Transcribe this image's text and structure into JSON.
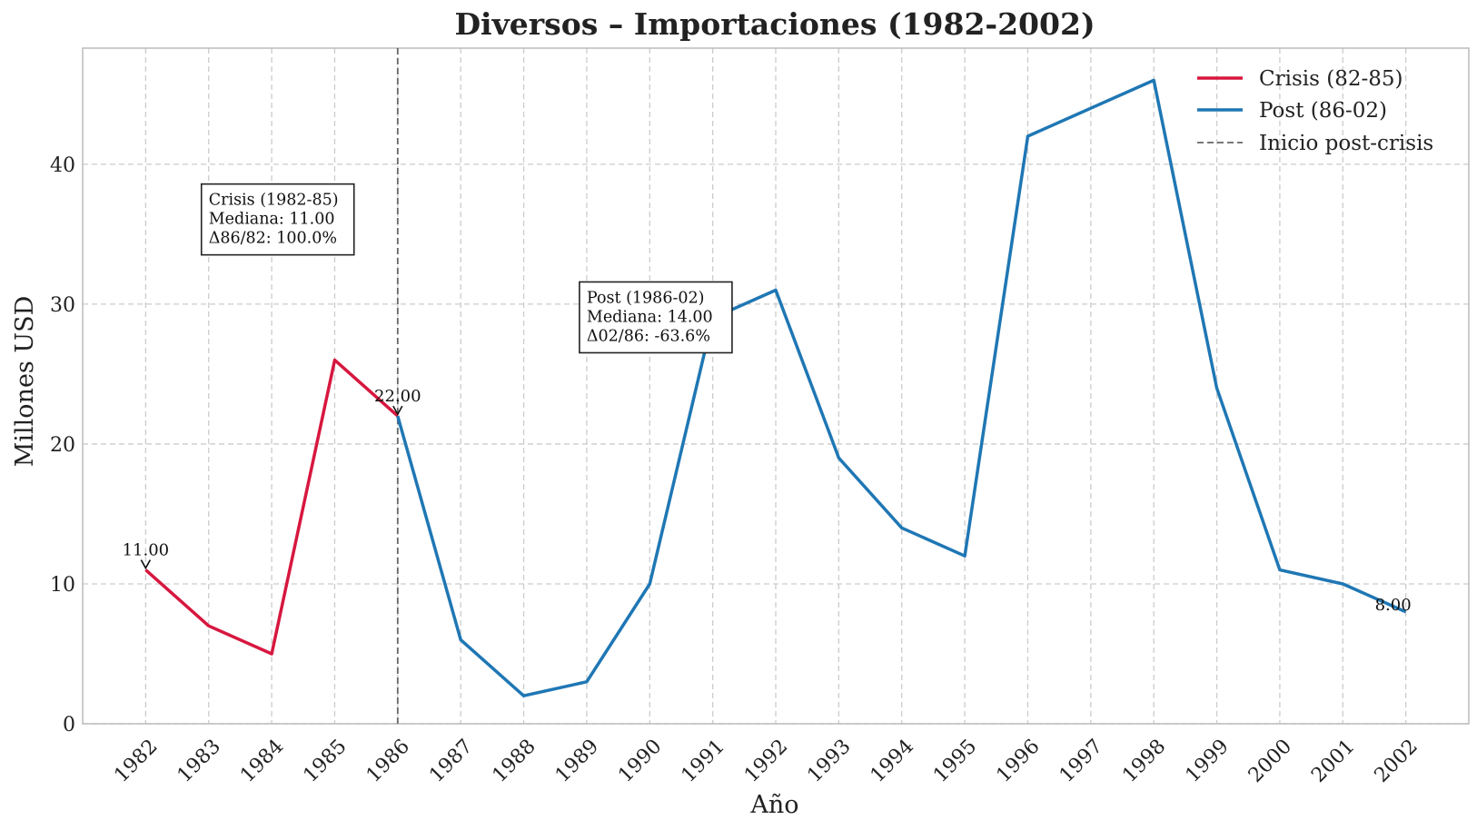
{
  "chart_data": {
    "type": "line",
    "title": "Diversos – Importaciones (1982-2002)",
    "xlabel": "Año",
    "ylabel": "Millones USD",
    "x": [
      1982,
      1983,
      1984,
      1985,
      1986,
      1987,
      1988,
      1989,
      1990,
      1991,
      1992,
      1993,
      1994,
      1995,
      1996,
      1997,
      1998,
      1999,
      2000,
      2001,
      2002
    ],
    "xlim": [
      1981,
      2003
    ],
    "ylim": [
      0,
      48.3
    ],
    "yticks": [
      0,
      10,
      20,
      30,
      40
    ],
    "grid": true,
    "legend_position": "top-right",
    "series": [
      {
        "name": "Crisis (82-85)",
        "color": "#d7173f",
        "x": [
          1982,
          1983,
          1984,
          1985,
          1986
        ],
        "values": [
          11,
          7,
          5,
          26,
          22
        ]
      },
      {
        "name": "Post (86-02)",
        "color": "#1f77b4",
        "x": [
          1986,
          1987,
          1988,
          1989,
          1990,
          1991,
          1992,
          1993,
          1994,
          1995,
          1996,
          1997,
          1998,
          1999,
          2000,
          2001,
          2002
        ],
        "values": [
          22,
          6,
          2,
          3,
          10,
          29,
          31,
          19,
          14,
          12,
          42,
          44,
          46,
          24,
          11,
          10,
          8
        ]
      }
    ],
    "vline": {
      "x": 1986,
      "label": "Inicio post-crisis",
      "color": "#666666"
    },
    "point_labels": [
      {
        "x": 1982,
        "y": 11,
        "text": "11.00",
        "arrow": true
      },
      {
        "x": 1986,
        "y": 22,
        "text": "22.00",
        "arrow": true
      },
      {
        "x": 2002,
        "y": 8,
        "text": "8.00",
        "arrow": false
      }
    ],
    "boxes": [
      {
        "lines": [
          "Crisis (1982-85)",
          "Mediana: 11.00",
          "Δ86/82: 100.0%"
        ],
        "anchor": [
          1983,
          38
        ]
      },
      {
        "lines": [
          "Post (1986-02)",
          "Mediana: 14.00",
          "Δ02/86: -63.6%"
        ],
        "anchor": [
          1989,
          31
        ]
      }
    ]
  }
}
